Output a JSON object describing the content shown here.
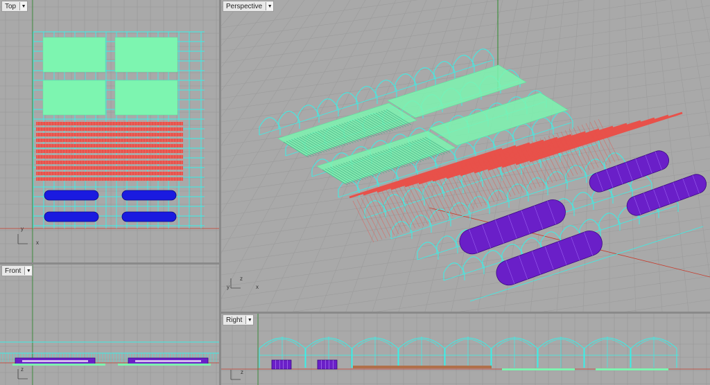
{
  "viewports": {
    "top": {
      "label": "Top",
      "axis_x": "x",
      "axis_y": "y"
    },
    "perspective": {
      "label": "Perspective",
      "axis_x": "x",
      "axis_y": "y",
      "axis_z": "z"
    },
    "front": {
      "label": "Front",
      "axis_x": "x",
      "axis_z": "z"
    },
    "right": {
      "label": "Right",
      "axis_y": "y",
      "axis_z": "z"
    }
  },
  "icons": {
    "dropdown": "chevron-down-icon"
  },
  "colors": {
    "frame": "#39f0e8",
    "bed": "#e8514a",
    "tray": "#7df5b0",
    "tank": "#6a1fc8",
    "tank_top": "#1a1ae0",
    "axis_x": "#c83a2a",
    "axis_y": "#2a8a2a",
    "grid": "#9a9a9a"
  }
}
